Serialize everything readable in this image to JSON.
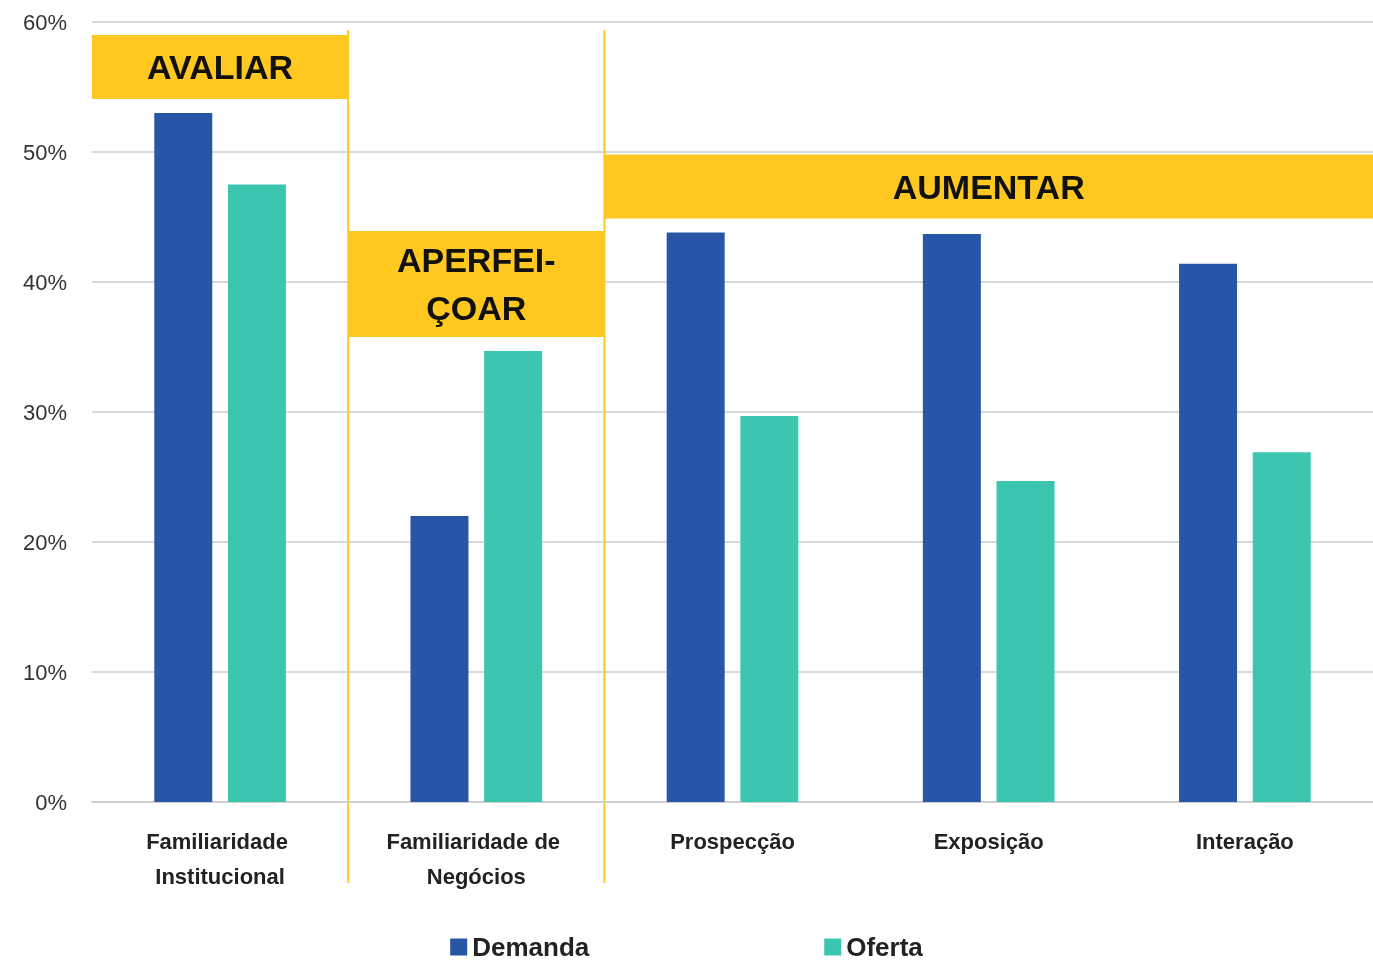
{
  "chart_data": {
    "type": "bar",
    "categories": [
      "Familiaridade Institucional",
      "Familiaridade de Negócios",
      "Prospecção",
      "Exposição",
      "Interação"
    ],
    "series": [
      {
        "name": "Demanda",
        "color": "#2756a6",
        "values": [
          53,
          22,
          43.8,
          43.7,
          41.4
        ]
      },
      {
        "name": "Oferta",
        "color": "#3cc6b0",
        "values": [
          47.5,
          34.7,
          29.7,
          24.7,
          26.9
        ]
      }
    ],
    "ylim": [
      0,
      60
    ],
    "yticks": [
      {
        "value": 0,
        "label": "0%"
      },
      {
        "value": 10,
        "label": "10%"
      },
      {
        "value": 20,
        "label": "20%"
      },
      {
        "value": 30,
        "label": "30%"
      },
      {
        "value": 40,
        "label": "40%"
      },
      {
        "value": 50,
        "label": "50%"
      },
      {
        "value": 60,
        "label": "60%"
      }
    ],
    "bands": [
      {
        "axis": "x",
        "from": "Familiaridade Institucional",
        "to": "Familiaridade Institucional",
        "label": "AVALIAR",
        "color": "#ffc820"
      },
      {
        "axis": "x",
        "from": "Familiaridade de Negócios",
        "to": "Familiaridade de Negócios",
        "label": "APERFEI-\nÇOAR",
        "color": "#ffc820"
      },
      {
        "axis": "x",
        "from": "Prospecção",
        "to": "Interação",
        "label": "AUMENTAR",
        "color": "#ffc820"
      }
    ],
    "grid": "y",
    "legend": "bottom"
  }
}
